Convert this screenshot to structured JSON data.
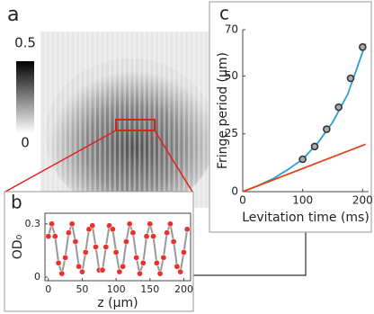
{
  "panel_labels": [
    "a",
    "b",
    "c"
  ],
  "colorbar": {
    "max": 0.5,
    "min": 0
  },
  "chart_data": [
    {
      "type": "scatter",
      "xlabel": "z (μm)",
      "ylabel": "OD₀",
      "x": [
        0,
        5,
        10,
        15,
        20,
        25,
        30,
        35,
        40,
        45,
        50,
        55,
        60,
        65,
        70,
        75,
        80,
        85,
        90,
        95,
        100,
        105,
        110,
        115,
        120,
        125,
        130,
        135,
        140,
        145,
        150,
        155,
        160,
        165,
        170,
        175,
        180,
        185,
        190,
        195,
        200,
        205
      ],
      "series": [
        {
          "color": "#e8322f",
          "line_color": "#999999",
          "values": [
            0.23,
            0.3,
            0.23,
            0.08,
            0.02,
            0.11,
            0.25,
            0.3,
            0.2,
            0.06,
            0.03,
            0.14,
            0.27,
            0.29,
            0.17,
            0.04,
            0.04,
            0.17,
            0.29,
            0.27,
            0.14,
            0.03,
            0.06,
            0.2,
            0.3,
            0.25,
            0.11,
            0.02,
            0.08,
            0.23,
            0.3,
            0.23,
            0.08,
            0.02,
            0.11,
            0.25,
            0.3,
            0.2,
            0.06,
            0.03,
            0.14,
            0.27
          ]
        }
      ],
      "xlim": [
        -5,
        210
      ],
      "xticks": [
        0,
        50,
        100,
        150,
        200
      ],
      "ylim": [
        -0.02,
        0.36
      ],
      "yticks": [
        0,
        0.3
      ]
    },
    {
      "type": "line",
      "xlabel": "Levitation time (ms)",
      "ylabel": "Fringe period (μm)",
      "series": [
        {
          "color": "#2a9fd6",
          "x": [
            0,
            25,
            50,
            75,
            100,
            125,
            150,
            175,
            205
          ],
          "values": [
            0,
            2.5,
            5.5,
            9.5,
            14,
            21,
            30,
            42,
            64
          ]
        },
        {
          "color": "#e0441c",
          "x": [
            0,
            205
          ],
          "values": [
            0,
            20.5
          ]
        },
        {
          "color": "#333333",
          "marker": "circle",
          "x": [
            100,
            120,
            140,
            160,
            180,
            200
          ],
          "values": [
            14,
            19.5,
            27,
            36.5,
            49,
            62.5
          ]
        }
      ],
      "xlim": [
        0,
        210
      ],
      "xticks": [
        0,
        100,
        200
      ],
      "ylim": [
        0,
        70
      ],
      "yticks": [
        0,
        25,
        50,
        70
      ]
    }
  ]
}
